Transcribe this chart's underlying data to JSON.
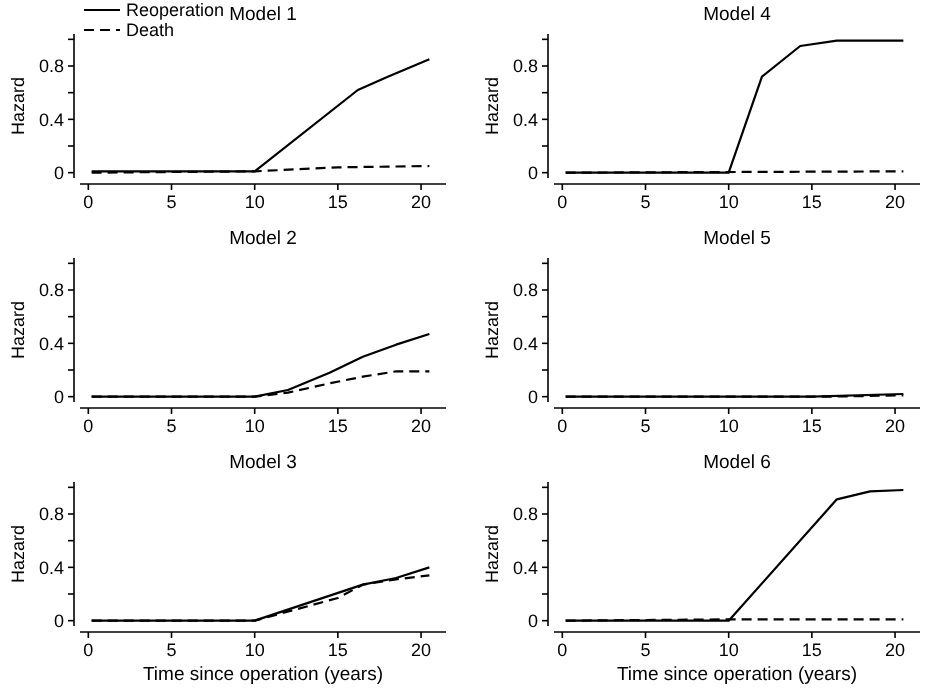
{
  "chart_data": [
    {
      "type": "line",
      "title": "Model 1",
      "ylabel": "Hazard",
      "xlim": [
        -0.5,
        21.5
      ],
      "ylim": [
        -0.04,
        1.04
      ],
      "xticks": [
        0,
        5,
        10,
        15,
        20
      ],
      "yticks": [
        0,
        {
          "value": 0.2,
          "label": null
        },
        0.4,
        {
          "value": 0.6,
          "label": null
        },
        0.8,
        {
          "value": 1,
          "label": null
        }
      ],
      "grid": false,
      "legend": "top left",
      "series": [
        {
          "name": "Reoperation",
          "color": "#000000",
          "line_style": "solid",
          "x": [
            0.2,
            10,
            16.2,
            18,
            20.5
          ],
          "values": [
            0.01,
            0.01,
            0.62,
            0.72,
            0.85
          ]
        },
        {
          "name": "Death",
          "color": "#000000",
          "line_style": "dashed",
          "x": [
            0.2,
            10,
            15,
            20.5
          ],
          "values": [
            0,
            0.01,
            0.04,
            0.05
          ]
        }
      ]
    },
    {
      "type": "line",
      "title": "Model 4",
      "ylabel": "Hazard",
      "xlim": [
        -0.5,
        21.5
      ],
      "ylim": [
        -0.04,
        1.04
      ],
      "xticks": [
        0,
        5,
        10,
        15,
        20
      ],
      "yticks": [
        0,
        {
          "value": 0.2,
          "label": null
        },
        0.4,
        {
          "value": 0.6,
          "label": null
        },
        0.8,
        {
          "value": 1,
          "label": null
        }
      ],
      "grid": false,
      "series": [
        {
          "color": "#000000",
          "line_style": "solid",
          "x": [
            0.2,
            10,
            12,
            14.3,
            16.5,
            20.5
          ],
          "values": [
            0,
            0,
            0.72,
            0.95,
            0.99,
            0.99
          ]
        },
        {
          "color": "#000000",
          "line_style": "dashed",
          "x": [
            0.2,
            20.5
          ],
          "values": [
            0,
            0.01
          ]
        }
      ]
    },
    {
      "type": "line",
      "title": "Model 2",
      "ylabel": "Hazard",
      "xlim": [
        -0.5,
        21.5
      ],
      "ylim": [
        -0.04,
        1.04
      ],
      "xticks": [
        0,
        5,
        10,
        15,
        20
      ],
      "yticks": [
        0,
        {
          "value": 0.2,
          "label": null
        },
        0.4,
        {
          "value": 0.6,
          "label": null
        },
        0.8,
        {
          "value": 1,
          "label": null
        }
      ],
      "grid": false,
      "series": [
        {
          "color": "#000000",
          "line_style": "solid",
          "x": [
            0.2,
            10,
            12,
            14.5,
            16.5,
            18.5,
            20.5
          ],
          "values": [
            0,
            0,
            0.05,
            0.18,
            0.3,
            0.39,
            0.47
          ]
        },
        {
          "color": "#000000",
          "line_style": "dashed",
          "x": [
            0.2,
            10,
            12,
            14.5,
            16.5,
            18.5,
            20.5
          ],
          "values": [
            0,
            0,
            0.03,
            0.1,
            0.15,
            0.19,
            0.19
          ]
        }
      ]
    },
    {
      "type": "line",
      "title": "Model 5",
      "ylabel": "Hazard",
      "xlim": [
        -0.5,
        21.5
      ],
      "ylim": [
        -0.04,
        1.04
      ],
      "xticks": [
        0,
        5,
        10,
        15,
        20
      ],
      "yticks": [
        0,
        {
          "value": 0.2,
          "label": null
        },
        0.4,
        {
          "value": 0.6,
          "label": null
        },
        0.8,
        {
          "value": 1,
          "label": null
        }
      ],
      "grid": false,
      "series": [
        {
          "color": "#000000",
          "line_style": "solid",
          "x": [
            0.2,
            15,
            20.5
          ],
          "values": [
            0,
            0,
            0.02
          ]
        },
        {
          "color": "#000000",
          "line_style": "dashed",
          "x": [
            0.2,
            16,
            20.5
          ],
          "values": [
            0,
            0,
            0.01
          ]
        }
      ]
    },
    {
      "type": "line",
      "title": "Model 3",
      "ylabel": "Hazard",
      "xlabel": "Time since operation (years)",
      "xlim": [
        -0.5,
        21.5
      ],
      "ylim": [
        -0.04,
        1.04
      ],
      "xticks": [
        0,
        5,
        10,
        15,
        20
      ],
      "yticks": [
        0,
        {
          "value": 0.2,
          "label": null
        },
        0.4,
        {
          "value": 0.6,
          "label": null
        },
        0.8,
        {
          "value": 1,
          "label": null
        }
      ],
      "grid": false,
      "series": [
        {
          "color": "#000000",
          "line_style": "solid",
          "x": [
            0.2,
            10,
            16.5,
            18.5,
            20.5
          ],
          "values": [
            0,
            0,
            0.27,
            0.32,
            0.4
          ]
        },
        {
          "color": "#000000",
          "line_style": "dashed",
          "x": [
            0.2,
            10,
            15,
            16.5,
            18.5,
            20.5
          ],
          "values": [
            0,
            0,
            0.17,
            0.27,
            0.31,
            0.34
          ]
        }
      ]
    },
    {
      "type": "line",
      "title": "Model 6",
      "ylabel": "Hazard",
      "xlabel": "Time since operation (years)",
      "xlim": [
        -0.5,
        21.5
      ],
      "ylim": [
        -0.04,
        1.04
      ],
      "xticks": [
        0,
        5,
        10,
        15,
        20
      ],
      "yticks": [
        0,
        {
          "value": 0.2,
          "label": null
        },
        0.4,
        {
          "value": 0.6,
          "label": null
        },
        0.8,
        {
          "value": 1,
          "label": null
        }
      ],
      "grid": false,
      "series": [
        {
          "color": "#000000",
          "line_style": "solid",
          "x": [
            0.2,
            10,
            16.5,
            18.5,
            20.5
          ],
          "values": [
            0,
            0,
            0.91,
            0.97,
            0.98
          ]
        },
        {
          "color": "#000000",
          "line_style": "dashed",
          "x": [
            0.2,
            10,
            20.5
          ],
          "values": [
            0,
            0.01,
            0.01
          ]
        }
      ]
    }
  ]
}
